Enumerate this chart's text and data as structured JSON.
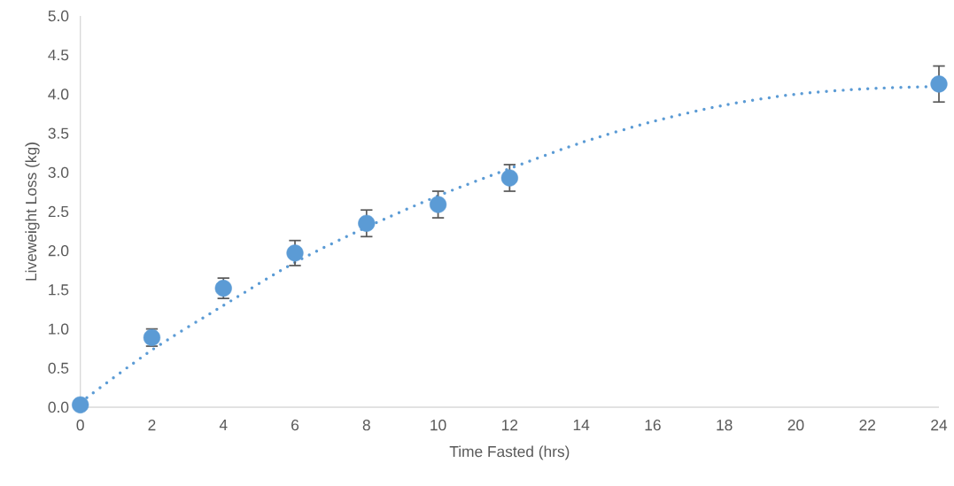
{
  "chart_data": {
    "type": "scatter",
    "xlabel": "Time Fasted (hrs)",
    "ylabel": "Liveweight Loss (kg)",
    "x": [
      0,
      2,
      4,
      6,
      8,
      10,
      12,
      24
    ],
    "series": [
      {
        "type": "scatter",
        "color": "#5b9bd5",
        "marker": "circle",
        "values": [
          0.03,
          0.89,
          1.52,
          1.97,
          2.35,
          2.59,
          2.93,
          4.13
        ],
        "errors": [
          null,
          0.11,
          0.13,
          0.16,
          0.17,
          0.17,
          0.17,
          0.23
        ]
      },
      {
        "type": "line",
        "color": "#5b9bd5",
        "line_style": "dotted",
        "marker": "none",
        "x": [
          0,
          2,
          4,
          6,
          8,
          10,
          12,
          14,
          16,
          18,
          20,
          22,
          24
        ],
        "values": [
          0.06,
          0.73,
          1.3,
          1.85,
          2.3,
          2.7,
          3.05,
          3.38,
          3.65,
          3.86,
          4.0,
          4.07,
          4.1
        ]
      }
    ],
    "xlim": [
      0,
      24
    ],
    "ylim": [
      0,
      5
    ],
    "xticks": [
      0,
      2,
      4,
      6,
      8,
      10,
      12,
      14,
      16,
      18,
      20,
      22,
      24
    ],
    "yticks": [
      {
        "value": 0,
        "label": "0.0"
      },
      {
        "value": 0.5,
        "label": "0.5"
      },
      {
        "value": 1,
        "label": "1.0"
      },
      {
        "value": 1.5,
        "label": "1.5"
      },
      {
        "value": 2,
        "label": "2.0"
      },
      {
        "value": 2.5,
        "label": "2.5"
      },
      {
        "value": 3,
        "label": "3.0"
      },
      {
        "value": 3.5,
        "label": "3.5"
      },
      {
        "value": 4,
        "label": "4.0"
      },
      {
        "value": 4.5,
        "label": "4.5"
      },
      {
        "value": 5,
        "label": "5.0"
      }
    ],
    "grid": false
  }
}
